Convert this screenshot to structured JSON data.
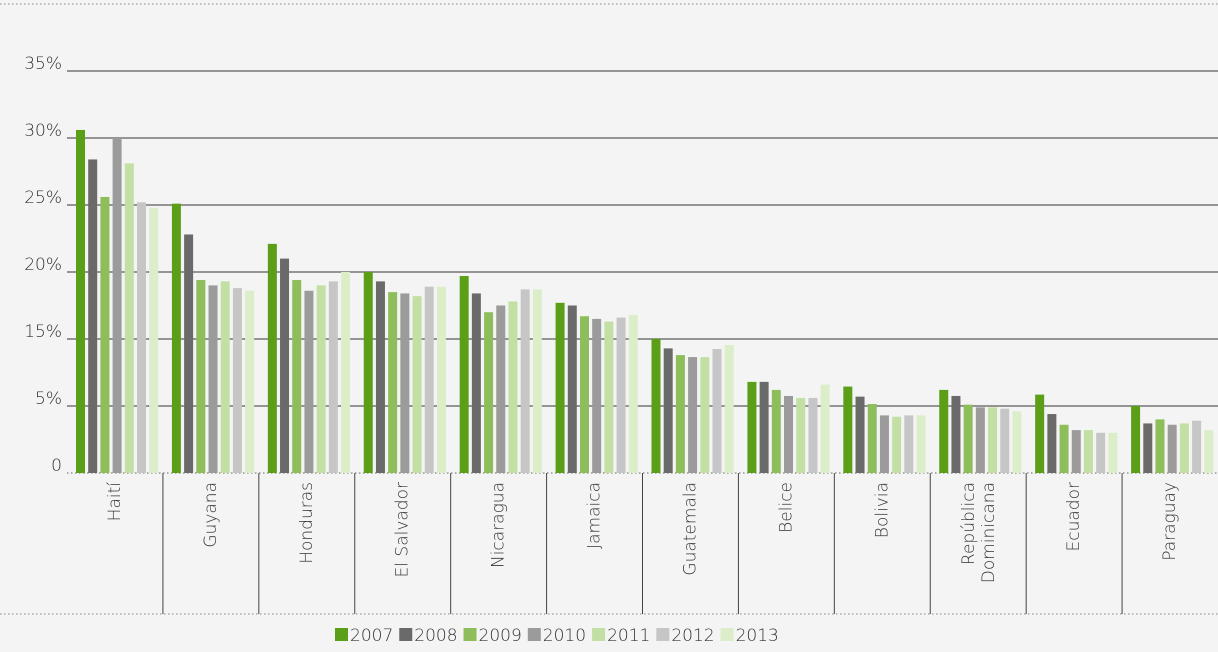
{
  "chart_data": {
    "type": "bar",
    "categories": [
      "Haití",
      "Guyana",
      "Honduras",
      "El Salvador",
      "Nicaragua",
      "Jamaica",
      "Guatemala",
      "Belice",
      "Bolivia",
      "República Dominicana",
      "Ecuador",
      "Paraguay"
    ],
    "series": [
      {
        "name": "2007",
        "color": "#5b9e18",
        "values": [
          30.6,
          25.1,
          22.1,
          20,
          19.7,
          17.7,
          15,
          8.6,
          7.9,
          7.4,
          6.7,
          5
        ]
      },
      {
        "name": "2008",
        "color": "#6a6a6a",
        "values": [
          28.4,
          22.8,
          21,
          19.3,
          18.4,
          17.5,
          13.6,
          8.6,
          6.4,
          6.5,
          4.4,
          3.7
        ]
      },
      {
        "name": "2009",
        "color": "#8dbe5b",
        "values": [
          25.6,
          19.4,
          19.4,
          18.5,
          17,
          16.7,
          12.6,
          7.4,
          5.3,
          5.2,
          3.6,
          4
        ]
      },
      {
        "name": "2010",
        "color": "#9b9b9b",
        "values": [
          30,
          19,
          18.6,
          18.4,
          17.5,
          16.5,
          12.3,
          6.5,
          4.3,
          4.9,
          3.2,
          3.6
        ]
      },
      {
        "name": "2011",
        "color": "#c3e0a4",
        "values": [
          28.1,
          19.3,
          19,
          18.2,
          17.8,
          16.3,
          12.3,
          6.2,
          4.2,
          4.9,
          3.2,
          3.7
        ]
      },
      {
        "name": "2012",
        "color": "#c6c6c6",
        "values": [
          25.2,
          18.8,
          19.3,
          18.9,
          18.7,
          16.6,
          13.5,
          6.2,
          4.3,
          4.8,
          3,
          3.9
        ]
      },
      {
        "name": "2013",
        "color": "#dcedc9",
        "values": [
          24.8,
          18.6,
          20,
          18.9,
          18.7,
          16.8,
          14.1,
          8.2,
          4.3,
          4.6,
          3,
          3.2
        ]
      }
    ],
    "ylim": [
      0,
      35
    ],
    "yticks": [
      0,
      {
        "value": 5,
        "label": "5%"
      },
      {
        "value": 15,
        "label": "15%"
      },
      {
        "value": 20,
        "label": "20%"
      },
      {
        "value": 25,
        "label": "25%"
      },
      {
        "value": 30,
        "label": "30%"
      },
      {
        "value": 35,
        "label": "35%"
      }
    ],
    "grid": true
  }
}
